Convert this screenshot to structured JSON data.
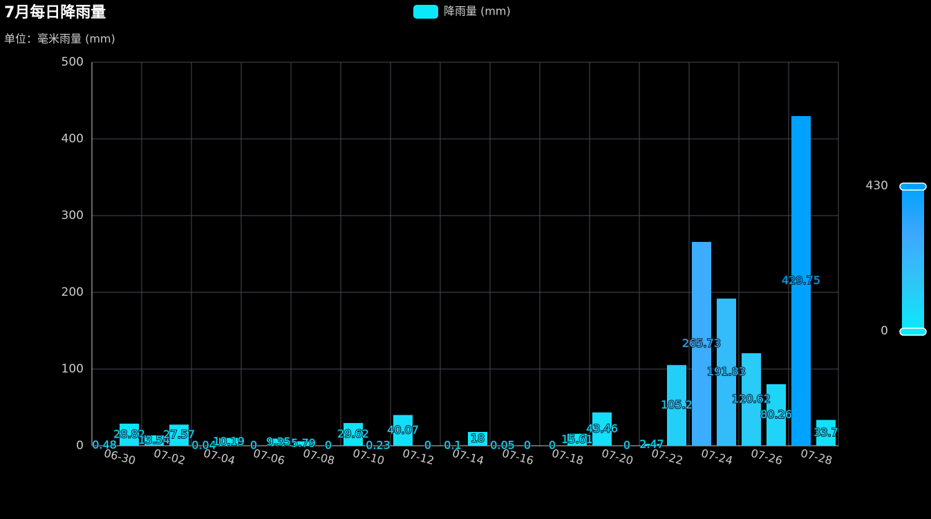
{
  "chart_data": {
    "type": "bar",
    "title": "7月每日降雨量",
    "subtitle": "单位：毫米雨量 (mm)",
    "categories": [
      "06-30",
      null,
      "07-02",
      null,
      "07-04",
      null,
      "07-06",
      null,
      "07-08",
      null,
      "07-10",
      null,
      "07-12",
      null,
      "07-14",
      null,
      "07-16",
      null,
      "07-18",
      null,
      "07-20",
      null,
      "07-22",
      null,
      "07-24",
      null,
      "07-26",
      null,
      "07-28",
      null
    ],
    "series": [
      {
        "name": "降雨量 (mm)",
        "color": "#0ae9fb",
        "values": [
          0.48,
          28.82,
          13.54,
          27.57,
          0.04,
          10.19,
          0,
          9.35,
          5.79,
          0,
          29.62,
          0.23,
          40.07,
          0,
          0.1,
          18,
          0.05,
          0,
          0,
          15.61,
          43.46,
          0,
          2.47,
          105.2,
          265.73,
          191.83,
          120.62,
          80.26,
          429.75,
          33.7
        ]
      }
    ],
    "ylim": [
      0,
      500
    ],
    "yticks": [
      0,
      100,
      200,
      300,
      400,
      500
    ],
    "grid": true,
    "visual_map": {
      "min": 0,
      "max": 430,
      "colors": [
        "#0ae9fb",
        "#2ec6f6",
        "#3ea8ff",
        "#00a2ff"
      ]
    }
  }
}
